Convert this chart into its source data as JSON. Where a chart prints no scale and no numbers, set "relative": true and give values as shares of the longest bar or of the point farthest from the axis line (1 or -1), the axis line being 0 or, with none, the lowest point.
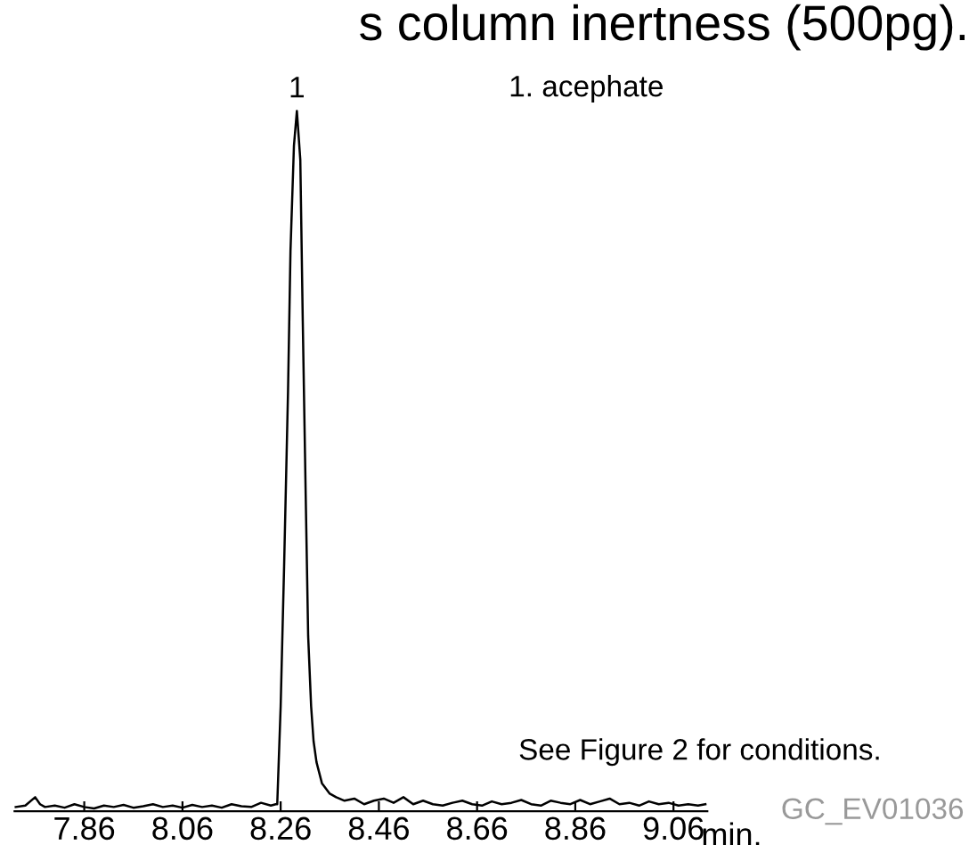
{
  "chart_data": {
    "type": "line",
    "relative": true,
    "title": "s column inertness (500pg).",
    "xlabel": "min.",
    "series": [
      {
        "color": "#000000",
        "x": [
          7.72,
          7.74,
          7.76,
          7.77,
          7.78,
          7.8,
          7.82,
          7.84,
          7.86,
          7.88,
          7.9,
          7.92,
          7.94,
          7.96,
          7.98,
          8.0,
          8.02,
          8.04,
          8.06,
          8.08,
          8.1,
          8.12,
          8.14,
          8.16,
          8.18,
          8.2,
          8.22,
          8.24,
          8.25,
          8.253,
          8.26,
          8.267,
          8.275,
          8.28,
          8.287,
          8.293,
          8.3,
          8.305,
          8.311,
          8.316,
          8.322,
          8.327,
          8.333,
          8.344,
          8.36,
          8.373,
          8.39,
          8.41,
          8.43,
          8.45,
          8.47,
          8.49,
          8.51,
          8.53,
          8.55,
          8.57,
          8.59,
          8.61,
          8.63,
          8.65,
          8.67,
          8.69,
          8.71,
          8.73,
          8.75,
          8.77,
          8.79,
          8.81,
          8.83,
          8.85,
          8.87,
          8.89,
          8.91,
          8.93,
          8.95,
          8.97,
          8.99,
          9.01,
          9.03,
          9.05,
          9.07,
          9.09,
          9.11,
          9.125
        ],
        "values": [
          0.006,
          0.008,
          0.02,
          0.01,
          0.006,
          0.008,
          0.005,
          0.01,
          0.006,
          0.004,
          0.008,
          0.006,
          0.009,
          0.005,
          0.007,
          0.01,
          0.006,
          0.008,
          0.005,
          0.009,
          0.006,
          0.008,
          0.005,
          0.01,
          0.007,
          0.006,
          0.012,
          0.008,
          0.01,
          0.01,
          0.15,
          0.35,
          0.6,
          0.8,
          0.95,
          1.0,
          0.93,
          0.7,
          0.45,
          0.25,
          0.15,
          0.1,
          0.07,
          0.04,
          0.025,
          0.02,
          0.015,
          0.018,
          0.01,
          0.015,
          0.018,
          0.012,
          0.02,
          0.01,
          0.015,
          0.01,
          0.008,
          0.012,
          0.015,
          0.01,
          0.008,
          0.014,
          0.01,
          0.012,
          0.016,
          0.01,
          0.008,
          0.015,
          0.012,
          0.01,
          0.016,
          0.01,
          0.014,
          0.018,
          0.01,
          0.012,
          0.008,
          0.014,
          0.01,
          0.012,
          0.008,
          0.01,
          0.008,
          0.01
        ]
      }
    ],
    "xlim": [
      7.718,
      9.129
    ],
    "xticks": [
      7.86,
      8.06,
      8.26,
      8.46,
      8.66,
      8.86,
      9.06
    ],
    "grid": false,
    "legend": false,
    "marker": "none",
    "line_style": "solid",
    "annotations": [
      {
        "text": "1",
        "x": 8.293,
        "y": 1.0
      },
      "1. acephate",
      "See Figure 2 for conditions.",
      "GC_EV01036"
    ]
  }
}
